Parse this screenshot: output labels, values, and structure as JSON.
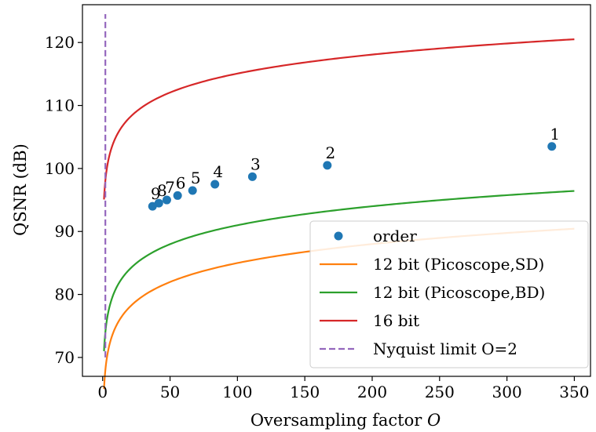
{
  "chart_data": {
    "type": "line",
    "title": "",
    "xlabel": "Oversampling factor",
    "xlabel_var": "O",
    "ylabel": "QSNR (dB)",
    "xlim": [
      -15,
      362
    ],
    "ylim": [
      67,
      126
    ],
    "xticks": [
      0,
      50,
      100,
      150,
      200,
      250,
      300,
      350
    ],
    "yticks": [
      70,
      80,
      90,
      100,
      110,
      120
    ],
    "grid": false,
    "legend_position": "lower-right",
    "series": [
      {
        "name": "order",
        "kind": "scatter",
        "color": "#1f77b4"
      },
      {
        "name": "12 bit (Picoscope,SD)",
        "kind": "line",
        "color": "#ff7f0e",
        "bits": 12,
        "offset_db": -6.0
      },
      {
        "name": "12 bit (Picoscope,BD)",
        "kind": "line",
        "color": "#2ca02c",
        "bits": 12,
        "offset_db": 0.0
      },
      {
        "name": "16 bit",
        "kind": "line",
        "color": "#d62728",
        "bits": 16,
        "offset_db": 0.0
      },
      {
        "name": "Nyquist limit O=2",
        "kind": "vline",
        "color": "#9467bd",
        "x": 2,
        "y_range": [
          70,
          124.5
        ]
      }
    ],
    "order_points": [
      {
        "label": "1",
        "x": 333.3,
        "y": 103.5
      },
      {
        "label": "2",
        "x": 166.7,
        "y": 100.5
      },
      {
        "label": "3",
        "x": 111.1,
        "y": 98.7
      },
      {
        "label": "4",
        "x": 83.3,
        "y": 97.5
      },
      {
        "label": "5",
        "x": 66.7,
        "y": 96.5
      },
      {
        "label": "6",
        "x": 55.6,
        "y": 95.7
      },
      {
        "label": "7",
        "x": 47.6,
        "y": 95.0
      },
      {
        "label": "8",
        "x": 41.7,
        "y": 94.5
      },
      {
        "label": "9",
        "x": 37.0,
        "y": 94.0
      }
    ]
  }
}
